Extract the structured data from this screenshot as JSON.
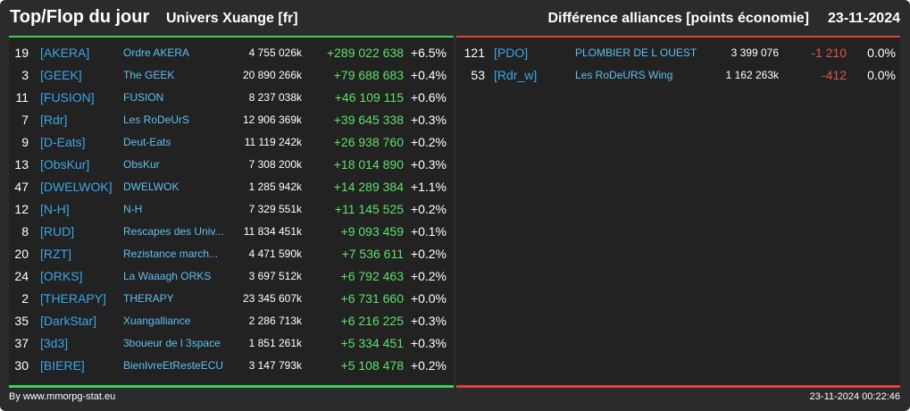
{
  "header": {
    "title": "Top/Flop du jour",
    "universe": "Univers Xuange [fr]",
    "subtitle": "Différence alliances [points économie]",
    "date": "23-11-2024"
  },
  "colors": {
    "top_accent": "#3ecf5a",
    "flop_accent": "#d9443c",
    "tag": "#3aa6e8",
    "name": "#5fbff0",
    "positive": "#5ee06a",
    "negative": "#e0554d",
    "background": "#2b2b2b",
    "panel": "#222222"
  },
  "top": [
    {
      "rank": "19",
      "tag": "[AKERA]",
      "name": "Ordre AKERA",
      "points": "4 755 026k",
      "diff": "+289 022 638",
      "pct": "+6.5%"
    },
    {
      "rank": "3",
      "tag": "[GEEK]",
      "name": "The GEEK",
      "points": "20 890 266k",
      "diff": "+79 688 683",
      "pct": "+0.4%"
    },
    {
      "rank": "11",
      "tag": "[FUSION]",
      "name": "FUSION",
      "points": "8 237 038k",
      "diff": "+46 109 115",
      "pct": "+0.6%"
    },
    {
      "rank": "7",
      "tag": "[Rdr]",
      "name": "Les RoDeUrS",
      "points": "12 906 369k",
      "diff": "+39 645 338",
      "pct": "+0.3%"
    },
    {
      "rank": "9",
      "tag": "[D-Eats]",
      "name": "Deut-Eats",
      "points": "11 119 242k",
      "diff": "+26 938 760",
      "pct": "+0.2%"
    },
    {
      "rank": "13",
      "tag": "[ObsKur]",
      "name": "ObsKur",
      "points": "7 308 200k",
      "diff": "+18 014 890",
      "pct": "+0.3%"
    },
    {
      "rank": "47",
      "tag": "[DWELWOK]",
      "name": "DWELWOK",
      "points": "1 285 942k",
      "diff": "+14 289 384",
      "pct": "+1.1%"
    },
    {
      "rank": "12",
      "tag": "[N-H]",
      "name": "N-H",
      "points": "7 329 551k",
      "diff": "+11 145 525",
      "pct": "+0.2%"
    },
    {
      "rank": "8",
      "tag": "[RUD]",
      "name": "Rescapes des Univ...",
      "points": "11 834 451k",
      "diff": "+9 093 459",
      "pct": "+0.1%"
    },
    {
      "rank": "20",
      "tag": "[RZT]",
      "name": "Rezistance march...",
      "points": "4 471 590k",
      "diff": "+7 536 611",
      "pct": "+0.2%"
    },
    {
      "rank": "24",
      "tag": "[ORKS]",
      "name": "La Waaagh ORKS",
      "points": "3 697 512k",
      "diff": "+6 792 463",
      "pct": "+0.2%"
    },
    {
      "rank": "2",
      "tag": "[THERAPY]",
      "name": "THERAPY",
      "points": "23 345 607k",
      "diff": "+6 731 660",
      "pct": "+0.0%"
    },
    {
      "rank": "35",
      "tag": "[DarkStar]",
      "name": "Xuangalliance",
      "points": "2 286 713k",
      "diff": "+6 216 225",
      "pct": "+0.3%"
    },
    {
      "rank": "37",
      "tag": "[3d3]",
      "name": "3boueur de l 3space",
      "points": "1 851 261k",
      "diff": "+5 334 451",
      "pct": "+0.3%"
    },
    {
      "rank": "30",
      "tag": "[BIERE]",
      "name": "BienIvreEtResteECU",
      "points": "3 147 793k",
      "diff": "+5 108 478",
      "pct": "+0.2%"
    }
  ],
  "flop": [
    {
      "rank": "121",
      "tag": "[PDO]",
      "name": "PLOMBIER DE L OUEST",
      "points": "3 399 076",
      "diff": "-1 210",
      "pct": "0.0%"
    },
    {
      "rank": "53",
      "tag": "[Rdr_w]",
      "name": "Les RoDeURS Wing",
      "points": "1 162 263k",
      "diff": "-412",
      "pct": "0.0%"
    }
  ],
  "footer": {
    "source": "By www.mmorpg-stat.eu",
    "timestamp": "23-11-2024 00:22:46"
  }
}
